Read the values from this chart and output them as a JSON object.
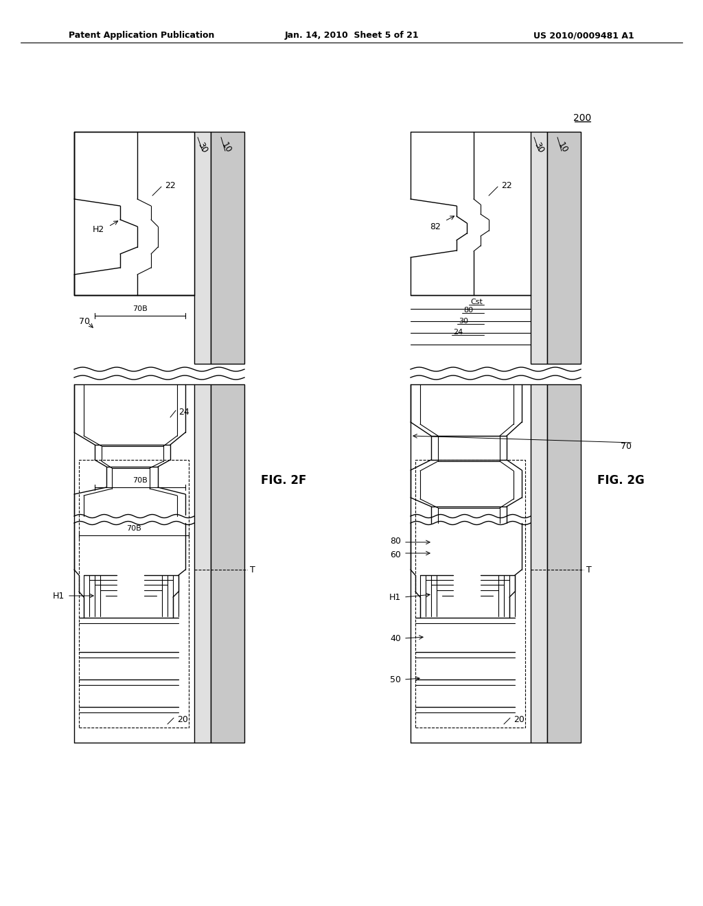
{
  "bg_color": "#ffffff",
  "text_color": "#000000",
  "header_left": "Patent Application Publication",
  "header_center": "Jan. 14, 2010  Sheet 5 of 21",
  "header_right": "US 2010/0009481 A1"
}
